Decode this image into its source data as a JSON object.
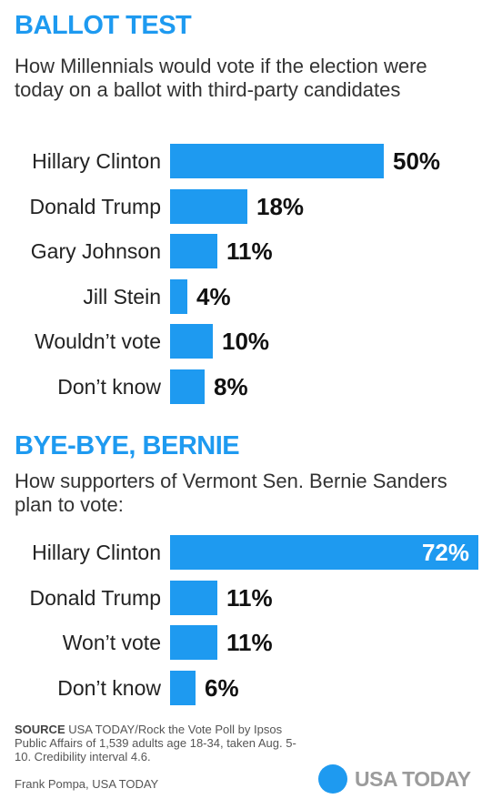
{
  "chart_data": [
    {
      "type": "bar",
      "orientation": "horizontal",
      "title": "BALLOT TEST",
      "subtitle": "How Millennials would vote if the election were today on a ballot with third-party candidates",
      "categories": [
        "Hillary Clinton",
        "Donald Trump",
        "Gary Johnson",
        "Jill Stein",
        "Wouldn’t vote",
        "Don’t know"
      ],
      "values": [
        50,
        18,
        11,
        4,
        10,
        8
      ],
      "value_labels": [
        "50%",
        "18%",
        "11%",
        "4%",
        "10%",
        "8%"
      ],
      "xlim": [
        0,
        72
      ],
      "grid": false,
      "bar_color": "#1e9af0"
    },
    {
      "type": "bar",
      "orientation": "horizontal",
      "title": "BYE-BYE, BERNIE",
      "subtitle": "How supporters of Vermont Sen. Bernie Sanders plan to vote:",
      "categories": [
        "Hillary Clinton",
        "Donald Trump",
        "Won’t vote",
        "Don’t know"
      ],
      "values": [
        72,
        11,
        11,
        6
      ],
      "value_labels": [
        "72%",
        "11%",
        "11%",
        "6%"
      ],
      "xlim": [
        0,
        72
      ],
      "grid": false,
      "bar_color": "#1e9af0"
    }
  ],
  "footer": {
    "source_label": "SOURCE",
    "source_text": "USA TODAY/Rock the Vote Poll by Ipsos Public Affairs of 1,539 adults age 18-34, taken Aug. 5-10. Credibility interval 4.6.",
    "credit": "Frank Pompa, USA TODAY",
    "logo_text": "USA TODAY"
  },
  "colors": {
    "accent": "#1e9af0",
    "logo_text": "#9b9b9b"
  }
}
